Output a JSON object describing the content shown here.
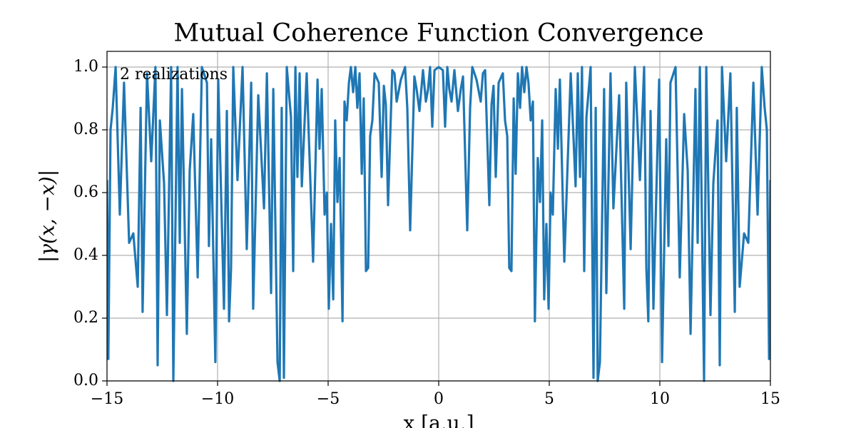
{
  "chart_data": {
    "type": "line",
    "title": "Mutual Coherence Function Convergence",
    "xlabel": "x [a.u.]",
    "ylabel": "|γ(x, −x)|",
    "annotation": "2 realizations",
    "xlim": [
      -15,
      15
    ],
    "ylim": [
      0,
      1.05
    ],
    "xticks": [
      {
        "value": -15,
        "label": "−15"
      },
      {
        "value": -10,
        "label": "−10"
      },
      {
        "value": -5,
        "label": "−5"
      },
      0,
      5,
      10,
      15
    ],
    "yticks": [
      {
        "value": 0,
        "label": "0.0"
      },
      0.2,
      0.4,
      0.6,
      0.8,
      {
        "value": 1,
        "label": "1.0"
      }
    ],
    "grid": true,
    "series": [
      {
        "color": "#1f77b4",
        "x": [
          -15.0,
          -14.94,
          -14.84,
          -14.74,
          -14.61,
          -14.42,
          -14.23,
          -14.0,
          -13.81,
          -13.61,
          -13.48,
          -13.39,
          -13.19,
          -13.0,
          -12.81,
          -12.71,
          -12.61,
          -12.42,
          -12.29,
          -12.1,
          -12.0,
          -11.81,
          -11.71,
          -11.61,
          -11.39,
          -11.26,
          -11.1,
          -10.9,
          -10.71,
          -10.48,
          -10.39,
          -10.29,
          -10.1,
          -9.97,
          -9.71,
          -9.58,
          -9.48,
          -9.39,
          -9.29,
          -9.1,
          -8.87,
          -8.68,
          -8.48,
          -8.39,
          -8.16,
          -7.9,
          -7.77,
          -7.58,
          -7.48,
          -7.29,
          -7.19,
          -7.1,
          -7.0,
          -6.87,
          -6.68,
          -6.58,
          -6.48,
          -6.39,
          -6.29,
          -6.19,
          -5.97,
          -5.68,
          -5.48,
          -5.39,
          -5.29,
          -5.16,
          -5.06,
          -4.97,
          -4.87,
          -4.77,
          -4.68,
          -4.58,
          -4.48,
          -4.35,
          -4.26,
          -4.16,
          -4.06,
          -3.97,
          -3.87,
          -3.77,
          -3.68,
          -3.58,
          -3.48,
          -3.39,
          -3.29,
          -3.19,
          -3.1,
          -3.0,
          -2.9,
          -2.71,
          -2.58,
          -2.48,
          -2.39,
          -2.29,
          -2.1,
          -2.0,
          -1.9,
          -1.71,
          -1.52,
          -1.42,
          -1.29,
          -1.1,
          -1.0,
          -0.87,
          -0.71,
          -0.58,
          -0.48,
          -0.39,
          -0.29,
          -0.19,
          0,
          0.19,
          0.29,
          0.39,
          0.48,
          0.58,
          0.71,
          0.87,
          1.0,
          1.1,
          1.29,
          1.42,
          1.52,
          1.71,
          1.9,
          2.0,
          2.1,
          2.29,
          2.39,
          2.48,
          2.58,
          2.71,
          2.9,
          3.0,
          3.1,
          3.19,
          3.29,
          3.39,
          3.48,
          3.58,
          3.68,
          3.77,
          3.87,
          3.97,
          4.06,
          4.16,
          4.26,
          4.35,
          4.48,
          4.58,
          4.68,
          4.77,
          4.87,
          4.97,
          5.06,
          5.16,
          5.29,
          5.39,
          5.48,
          5.68,
          5.97,
          6.19,
          6.29,
          6.39,
          6.48,
          6.58,
          6.68,
          6.87,
          7.0,
          7.1,
          7.19,
          7.29,
          7.48,
          7.58,
          7.77,
          7.9,
          8.16,
          8.39,
          8.48,
          8.68,
          8.87,
          9.1,
          9.29,
          9.39,
          9.48,
          9.58,
          9.71,
          9.97,
          10.1,
          10.29,
          10.39,
          10.48,
          10.71,
          10.9,
          11.1,
          11.26,
          11.39,
          11.61,
          11.71,
          11.81,
          12.0,
          12.1,
          12.29,
          12.42,
          12.61,
          12.71,
          12.81,
          13.0,
          13.19,
          13.39,
          13.48,
          13.61,
          13.81,
          14.0,
          14.23,
          14.42,
          14.61,
          14.74,
          14.84,
          14.94,
          15.0
        ],
        "values": [
          0.64,
          0.07,
          0.8,
          0.87,
          1.0,
          0.53,
          0.95,
          0.44,
          0.47,
          0.3,
          0.87,
          0.22,
          0.98,
          0.7,
          1.0,
          0.05,
          0.83,
          0.63,
          0.21,
          1.0,
          0.0,
          1.0,
          0.44,
          0.93,
          0.15,
          0.67,
          0.85,
          0.33,
          1.0,
          0.95,
          0.43,
          0.77,
          0.06,
          0.96,
          0.23,
          0.86,
          0.19,
          0.36,
          1.0,
          0.64,
          1.0,
          0.42,
          0.95,
          0.23,
          0.91,
          0.55,
          0.98,
          0.28,
          0.93,
          0.06,
          0.0,
          0.87,
          0.01,
          1.0,
          0.84,
          0.35,
          1.0,
          0.65,
          0.98,
          0.62,
          0.98,
          0.38,
          0.96,
          0.74,
          0.93,
          0.53,
          0.6,
          0.23,
          0.5,
          0.26,
          0.83,
          0.57,
          0.71,
          0.19,
          0.89,
          0.83,
          0.95,
          1.0,
          0.92,
          1.0,
          0.87,
          0.98,
          0.66,
          0.9,
          0.35,
          0.36,
          0.78,
          0.83,
          0.98,
          0.95,
          0.65,
          0.94,
          0.88,
          0.56,
          0.99,
          0.98,
          0.89,
          0.96,
          1.0,
          0.87,
          0.48,
          0.97,
          0.93,
          0.86,
          0.99,
          0.89,
          0.93,
          1.0,
          0.81,
          0.99,
          1.0,
          0.99,
          0.81,
          1.0,
          0.93,
          0.89,
          0.99,
          0.86,
          0.93,
          0.97,
          0.48,
          0.87,
          1.0,
          0.96,
          0.89,
          0.98,
          0.99,
          0.56,
          0.88,
          0.94,
          0.65,
          0.95,
          0.98,
          0.83,
          0.78,
          0.36,
          0.35,
          0.9,
          0.66,
          0.98,
          0.87,
          1.0,
          0.92,
          1.0,
          0.95,
          0.83,
          0.89,
          0.19,
          0.71,
          0.57,
          0.83,
          0.26,
          0.5,
          0.23,
          0.6,
          0.53,
          0.93,
          0.74,
          0.96,
          0.38,
          0.98,
          0.62,
          0.98,
          0.65,
          1.0,
          0.35,
          0.84,
          1.0,
          0.01,
          0.87,
          0.0,
          0.06,
          0.93,
          0.28,
          0.98,
          0.55,
          0.91,
          0.23,
          0.95,
          0.42,
          1.0,
          0.64,
          1.0,
          0.36,
          0.19,
          0.86,
          0.23,
          0.96,
          0.06,
          0.77,
          0.43,
          0.95,
          1.0,
          0.33,
          0.85,
          0.67,
          0.15,
          0.93,
          0.44,
          1.0,
          0.0,
          1.0,
          0.21,
          0.63,
          0.83,
          0.05,
          1.0,
          0.7,
          0.98,
          0.22,
          0.87,
          0.3,
          0.47,
          0.44,
          0.95,
          0.53,
          1.0,
          0.87,
          0.8,
          0.07,
          0.64
        ]
      }
    ]
  }
}
